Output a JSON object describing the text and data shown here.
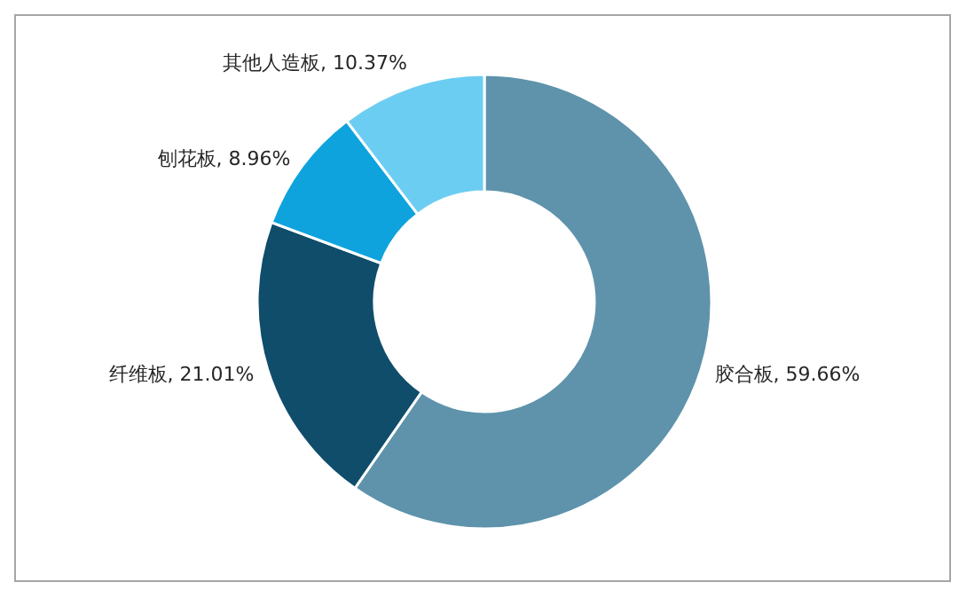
{
  "chart_data": {
    "type": "donut",
    "categories": [
      "胶合板",
      "纤维板",
      "刨花板",
      "其他人造板"
    ],
    "values": [
      59.66,
      21.01,
      8.96,
      10.37
    ],
    "colors": [
      "#5e93ab",
      "#0f4d6b",
      "#0ea3dd",
      "#6ccdf2"
    ],
    "value_labels": [
      "59.66%",
      "21.01%",
      "8.96%",
      "10.37%"
    ]
  }
}
